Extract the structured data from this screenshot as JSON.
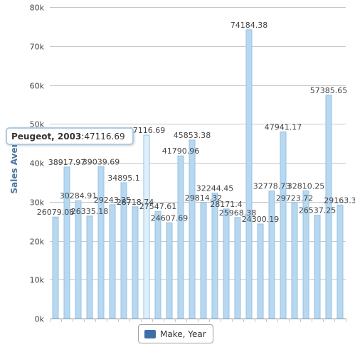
{
  "chart_data": {
    "type": "bar",
    "ylabel": "Sales Aver",
    "ylim": [
      0,
      80000
    ],
    "yticks": [
      "0k",
      "10k",
      "20k",
      "30k",
      "40k",
      "50k",
      "60k",
      "70k",
      "80k"
    ],
    "grid": true,
    "legend_position": "bottom-center",
    "series": [
      {
        "name": "Make, Year",
        "values": [
          26079.08,
          38917.97,
          30284.91,
          26335.18,
          39039.69,
          29243.25,
          34895.1,
          28718.74,
          47116.69,
          27547.61,
          24607.69,
          41790.96,
          45853.38,
          29814.32,
          32244.45,
          28171.4,
          25968.38,
          74184.38,
          24300.19,
          32778.73,
          47941.17,
          29723.72,
          32810.25,
          26537.25,
          57385.65,
          29163.3
        ],
        "labels": [
          "26079.08",
          "38917.97",
          "30284.91",
          "26335.18",
          "39039.69",
          "29243.25",
          "34895.1",
          "28718.74",
          "47116.69",
          "27547.61",
          "24607.69",
          "41790.96",
          "45853.38",
          "29814.32",
          "32244.45",
          "28171.4",
          "25968.38",
          "74184.38",
          "24300.19",
          "32778.73",
          "47941.17",
          "29723.72",
          "32810.25",
          "26537.25",
          "57385.65",
          "29163.3"
        ]
      }
    ],
    "highlighted_index": 8
  },
  "colors": {
    "bar_fill": "#b8d8f0",
    "bar_edge": "#94c2e6",
    "bar_highlight": "#e0f0fb",
    "grid": "#c8c8c8",
    "axis": "#888888",
    "label": "#444444",
    "legend_swatch": "#3e6fa6",
    "ylabel": "#4d759e",
    "tooltip_border": "#a9cde8"
  },
  "legend": {
    "label": "Make, Year"
  },
  "tooltip": {
    "category": "Peugeot, 2003",
    "separator": " : ",
    "value": "47116.69"
  }
}
